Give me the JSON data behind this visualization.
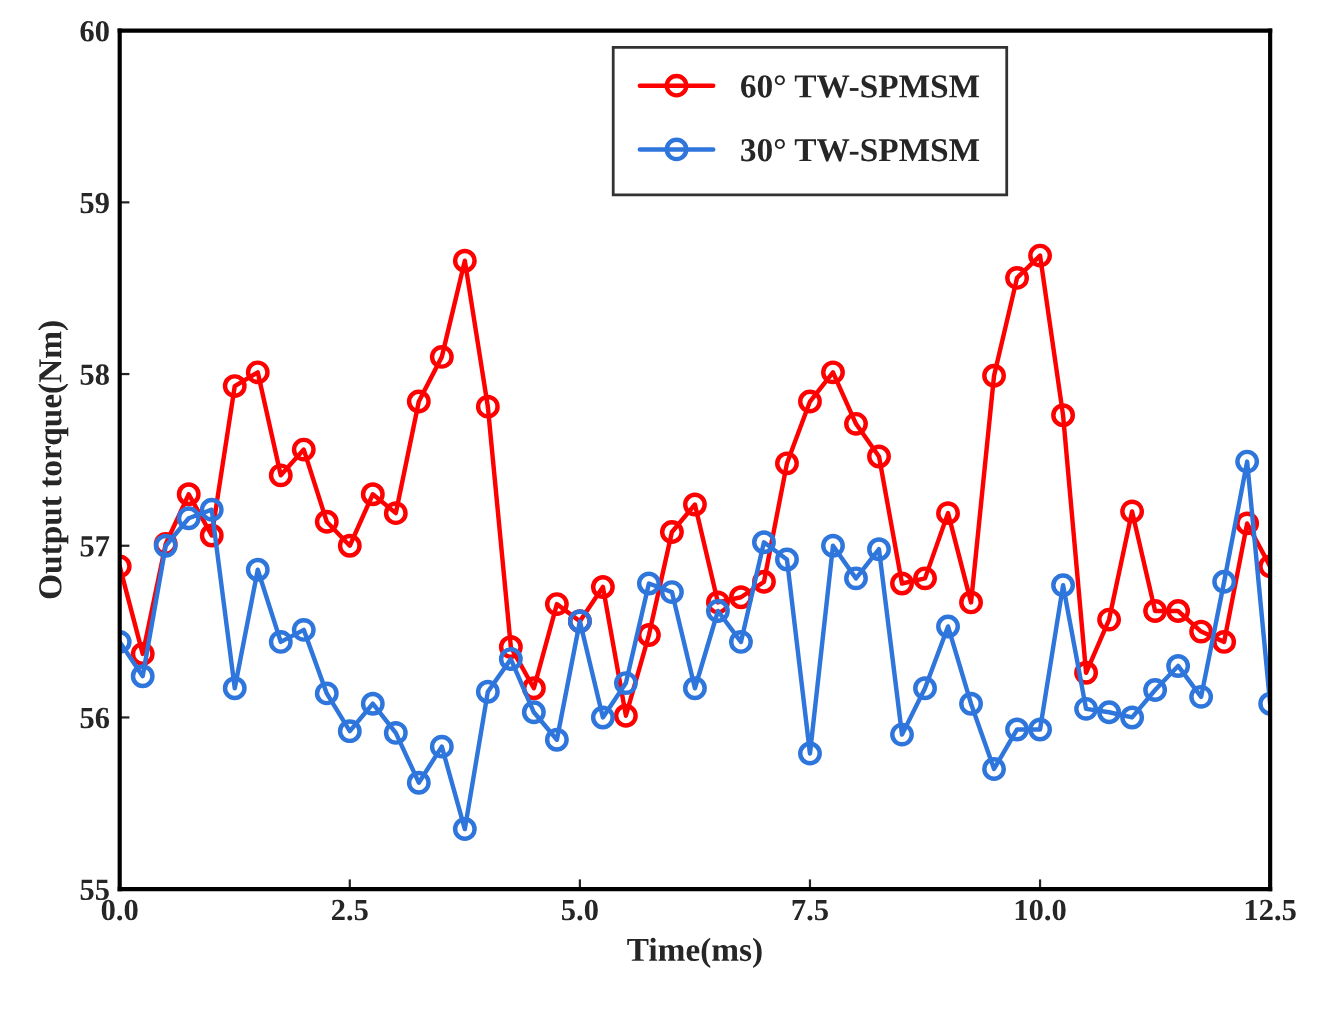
{
  "chart_data": {
    "type": "line",
    "xlabel": "Time(ms)",
    "ylabel": "Output torque(Nm)",
    "x": [
      0,
      0.25,
      0.5,
      0.75,
      1.0,
      1.25,
      1.5,
      1.75,
      2.0,
      2.25,
      2.5,
      2.75,
      3.0,
      3.25,
      3.5,
      3.75,
      4.0,
      4.25,
      4.5,
      4.75,
      5.0,
      5.25,
      5.5,
      5.75,
      6.0,
      6.25,
      6.5,
      6.75,
      7.0,
      7.25,
      7.5,
      7.75,
      8.0,
      8.25,
      8.5,
      8.75,
      9.0,
      9.25,
      9.5,
      9.75,
      10.0,
      10.25,
      10.5,
      10.75,
      11.0,
      11.25,
      11.5,
      11.75,
      12.0,
      12.25,
      12.5
    ],
    "series": [
      {
        "name": "60° TW-SPMSM",
        "color": "#ff0000",
        "values": [
          56.88,
          56.37,
          57.01,
          57.3,
          57.06,
          57.93,
          58.01,
          57.41,
          57.56,
          57.14,
          57.0,
          57.3,
          57.19,
          57.84,
          58.1,
          58.66,
          57.81,
          56.41,
          56.17,
          56.66,
          56.56,
          56.76,
          56.01,
          56.48,
          57.08,
          57.24,
          56.67,
          56.7,
          56.79,
          57.48,
          57.84,
          58.01,
          57.71,
          57.52,
          56.78,
          56.81,
          57.19,
          56.67,
          57.99,
          58.56,
          58.69,
          57.76,
          56.26,
          56.57,
          57.2,
          56.62,
          56.62,
          56.5,
          56.44,
          57.13,
          56.88
        ]
      },
      {
        "name": "30° TW-SPMSM",
        "color": "#2e75dc",
        "values": [
          56.44,
          56.24,
          57.0,
          57.16,
          57.21,
          56.17,
          56.86,
          56.44,
          56.51,
          56.14,
          55.92,
          56.08,
          55.91,
          55.62,
          55.83,
          55.35,
          56.15,
          56.34,
          56.03,
          55.87,
          56.56,
          56.0,
          56.2,
          56.78,
          56.73,
          56.17,
          56.62,
          56.44,
          57.02,
          56.92,
          55.79,
          57.0,
          56.81,
          56.98,
          55.9,
          56.17,
          56.53,
          56.08,
          55.7,
          55.93,
          55.93,
          56.77,
          56.05,
          56.03,
          56.0,
          56.16,
          56.3,
          56.12,
          56.79,
          57.49,
          56.08
        ]
      }
    ],
    "xlim": [
      0,
      12.5
    ],
    "xticks": [
      {
        "value": 0,
        "label": "0.0"
      },
      2.5,
      {
        "value": 5,
        "label": "5.0"
      },
      7.5,
      {
        "value": 10,
        "label": "10.0"
      },
      12.5
    ],
    "ylim": [
      55,
      60
    ],
    "yticks": [
      55,
      56,
      57,
      58,
      59,
      60
    ],
    "grid": false,
    "legend": "top",
    "marker": "circle",
    "line_style": "solid"
  }
}
